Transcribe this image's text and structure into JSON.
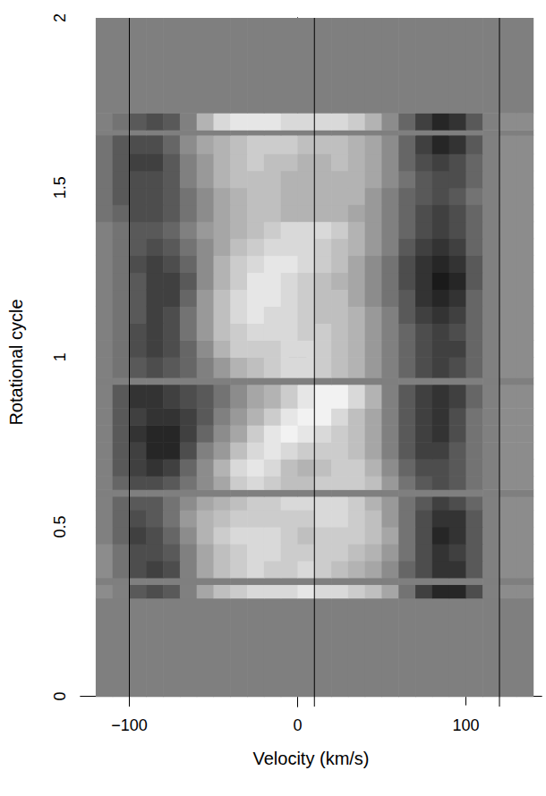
{
  "chart_data": {
    "type": "heatmap",
    "xlabel": "Velocity (km/s)",
    "ylabel": "Rotational cycle",
    "xlim": [
      -129,
      145
    ],
    "ylim": [
      -0.03,
      2
    ],
    "xticks": [
      {
        "value": -100,
        "label": "−100"
      },
      0,
      100
    ],
    "yticks": [
      0,
      0.5,
      1,
      1.5,
      2
    ],
    "zlim": [
      0,
      1
    ],
    "vlines": [
      -100,
      10,
      120
    ],
    "x_edges": [
      -120,
      -110,
      -100,
      -90,
      -80,
      -70,
      -60,
      -50,
      -40,
      -30,
      -20,
      -10,
      0,
      10,
      20,
      30,
      40,
      50,
      60,
      70,
      80,
      90,
      100,
      110,
      120,
      130,
      140
    ],
    "y_edges": [
      0,
      0.29,
      0.33,
      0.35,
      0.4,
      0.45,
      0.5,
      0.55,
      0.59,
      0.61,
      0.65,
      0.7,
      0.75,
      0.8,
      0.85,
      0.92,
      0.94,
      1.0,
      1.05,
      1.1,
      1.15,
      1.2,
      1.25,
      1.3,
      1.35,
      1.4,
      1.45,
      1.5,
      1.55,
      1.6,
      1.655,
      1.67,
      1.72,
      2
    ],
    "values": [
      [
        null,
        null,
        null,
        null,
        null,
        null,
        null,
        null,
        null,
        null,
        null,
        null,
        null,
        null,
        null,
        null,
        null,
        null,
        null,
        null,
        null,
        null,
        null,
        null,
        null,
        null
      ],
      [
        0.55,
        0.5,
        0.35,
        0.3,
        0.35,
        0.5,
        0.65,
        0.75,
        0.8,
        0.85,
        0.85,
        0.85,
        0.9,
        0.85,
        0.85,
        0.8,
        0.75,
        0.65,
        0.45,
        0.25,
        0.15,
        0.15,
        0.3,
        0.5,
        0.55,
        0.55
      ],
      [
        null,
        null,
        null,
        null,
        null,
        null,
        null,
        null,
        null,
        null,
        null,
        null,
        null,
        null,
        null,
        null,
        null,
        null,
        null,
        null,
        null,
        null,
        null,
        null,
        null,
        null
      ],
      [
        0.55,
        0.45,
        0.3,
        0.25,
        0.3,
        0.5,
        0.65,
        0.75,
        0.8,
        0.85,
        0.8,
        0.8,
        0.85,
        0.8,
        0.75,
        0.7,
        0.65,
        0.55,
        0.4,
        0.3,
        0.2,
        0.2,
        0.35,
        0.5,
        0.55,
        0.55
      ],
      [
        0.55,
        0.45,
        0.3,
        0.3,
        0.35,
        0.5,
        0.65,
        0.75,
        0.8,
        0.85,
        0.85,
        0.8,
        0.8,
        0.8,
        0.8,
        0.75,
        0.7,
        0.6,
        0.45,
        0.3,
        0.2,
        0.25,
        0.35,
        0.5,
        0.55,
        0.55
      ],
      [
        0.5,
        0.4,
        0.25,
        0.3,
        0.4,
        0.55,
        0.7,
        0.8,
        0.85,
        0.85,
        0.85,
        0.8,
        0.75,
        0.8,
        0.8,
        0.8,
        0.75,
        0.65,
        0.45,
        0.3,
        0.15,
        0.2,
        0.35,
        0.5,
        0.55,
        0.55
      ],
      [
        0.5,
        0.4,
        0.3,
        0.35,
        0.45,
        0.6,
        0.7,
        0.75,
        0.8,
        0.8,
        0.8,
        0.8,
        0.8,
        0.85,
        0.85,
        0.8,
        0.75,
        0.6,
        0.45,
        0.3,
        0.2,
        0.2,
        0.35,
        0.5,
        0.55,
        0.55
      ],
      [
        0.5,
        0.4,
        0.35,
        0.35,
        0.45,
        0.55,
        0.65,
        0.7,
        0.75,
        0.8,
        0.8,
        0.85,
        0.85,
        0.85,
        0.85,
        0.8,
        0.7,
        0.6,
        0.45,
        0.35,
        0.25,
        0.3,
        0.4,
        0.5,
        0.55,
        0.55
      ],
      [
        null,
        null,
        null,
        null,
        null,
        null,
        null,
        null,
        null,
        null,
        null,
        null,
        null,
        null,
        null,
        null,
        null,
        null,
        null,
        null,
        null,
        null,
        null,
        null,
        null,
        null
      ],
      [
        0.5,
        0.4,
        0.3,
        0.3,
        0.35,
        0.45,
        0.55,
        0.65,
        0.8,
        0.85,
        0.8,
        0.75,
        0.75,
        0.8,
        0.8,
        0.8,
        0.75,
        0.6,
        0.45,
        0.35,
        0.3,
        0.35,
        0.45,
        0.5,
        0.55,
        0.55
      ],
      [
        0.5,
        0.35,
        0.25,
        0.2,
        0.25,
        0.4,
        0.55,
        0.7,
        0.85,
        0.9,
        0.85,
        0.75,
        0.7,
        0.75,
        0.8,
        0.8,
        0.7,
        0.55,
        0.4,
        0.3,
        0.3,
        0.35,
        0.45,
        0.5,
        0.55,
        0.55
      ],
      [
        0.5,
        0.35,
        0.25,
        0.15,
        0.15,
        0.3,
        0.5,
        0.6,
        0.75,
        0.85,
        0.9,
        0.85,
        0.8,
        0.8,
        0.8,
        0.75,
        0.65,
        0.5,
        0.35,
        0.25,
        0.25,
        0.35,
        0.45,
        0.5,
        0.55,
        0.55
      ],
      [
        0.5,
        0.35,
        0.2,
        0.15,
        0.15,
        0.25,
        0.4,
        0.55,
        0.65,
        0.8,
        0.9,
        0.95,
        0.9,
        0.85,
        0.8,
        0.75,
        0.65,
        0.5,
        0.35,
        0.25,
        0.2,
        0.3,
        0.45,
        0.5,
        0.55,
        0.55
      ],
      [
        0.5,
        0.35,
        0.25,
        0.2,
        0.2,
        0.25,
        0.35,
        0.5,
        0.6,
        0.7,
        0.8,
        0.9,
        0.95,
        0.95,
        0.85,
        0.75,
        0.65,
        0.5,
        0.35,
        0.25,
        0.2,
        0.3,
        0.45,
        0.5,
        0.55,
        0.55
      ],
      [
        0.5,
        0.35,
        0.2,
        0.2,
        0.25,
        0.3,
        0.35,
        0.45,
        0.55,
        0.65,
        0.7,
        0.8,
        0.9,
        0.95,
        0.95,
        0.85,
        0.7,
        0.5,
        0.35,
        0.25,
        0.2,
        0.25,
        0.4,
        0.5,
        0.55,
        0.55
      ],
      [
        null,
        null,
        null,
        null,
        null,
        null,
        null,
        null,
        null,
        null,
        null,
        null,
        null,
        null,
        null,
        null,
        null,
        null,
        null,
        null,
        null,
        null,
        null,
        null,
        null,
        null
      ],
      [
        0.5,
        0.45,
        0.35,
        0.3,
        0.35,
        0.4,
        0.5,
        0.6,
        0.7,
        0.75,
        0.8,
        0.85,
        0.85,
        0.8,
        0.75,
        0.7,
        0.6,
        0.5,
        0.4,
        0.3,
        0.25,
        0.3,
        0.4,
        0.5,
        0.55,
        0.55
      ],
      [
        0.5,
        0.45,
        0.3,
        0.25,
        0.3,
        0.4,
        0.55,
        0.7,
        0.8,
        0.8,
        0.8,
        0.85,
        0.85,
        0.8,
        0.75,
        0.7,
        0.6,
        0.5,
        0.4,
        0.3,
        0.25,
        0.25,
        0.4,
        0.5,
        0.55,
        0.55
      ],
      [
        0.5,
        0.45,
        0.3,
        0.25,
        0.3,
        0.45,
        0.6,
        0.75,
        0.8,
        0.85,
        0.85,
        0.85,
        0.8,
        0.8,
        0.75,
        0.7,
        0.6,
        0.5,
        0.4,
        0.3,
        0.25,
        0.3,
        0.4,
        0.5,
        0.55,
        0.55
      ],
      [
        0.5,
        0.45,
        0.35,
        0.25,
        0.3,
        0.45,
        0.6,
        0.75,
        0.85,
        0.9,
        0.85,
        0.85,
        0.8,
        0.75,
        0.75,
        0.7,
        0.6,
        0.5,
        0.35,
        0.25,
        0.2,
        0.25,
        0.4,
        0.5,
        0.55,
        0.55
      ],
      [
        0.5,
        0.45,
        0.35,
        0.25,
        0.25,
        0.4,
        0.6,
        0.75,
        0.85,
        0.9,
        0.9,
        0.85,
        0.8,
        0.75,
        0.75,
        0.65,
        0.55,
        0.45,
        0.35,
        0.2,
        0.15,
        0.2,
        0.4,
        0.5,
        0.55,
        0.55
      ],
      [
        0.5,
        0.45,
        0.35,
        0.25,
        0.25,
        0.35,
        0.55,
        0.7,
        0.8,
        0.9,
        0.9,
        0.85,
        0.8,
        0.75,
        0.7,
        0.65,
        0.55,
        0.45,
        0.3,
        0.2,
        0.1,
        0.15,
        0.35,
        0.5,
        0.55,
        0.55
      ],
      [
        0.5,
        0.45,
        0.3,
        0.25,
        0.3,
        0.4,
        0.55,
        0.7,
        0.8,
        0.85,
        0.9,
        0.9,
        0.85,
        0.8,
        0.75,
        0.65,
        0.55,
        0.45,
        0.3,
        0.2,
        0.15,
        0.2,
        0.35,
        0.5,
        0.55,
        0.55
      ],
      [
        0.5,
        0.45,
        0.35,
        0.3,
        0.35,
        0.45,
        0.55,
        0.65,
        0.75,
        0.8,
        0.85,
        0.85,
        0.85,
        0.8,
        0.75,
        0.7,
        0.6,
        0.5,
        0.35,
        0.25,
        0.2,
        0.25,
        0.4,
        0.5,
        0.55,
        0.55
      ],
      [
        0.5,
        0.45,
        0.35,
        0.35,
        0.4,
        0.5,
        0.6,
        0.65,
        0.7,
        0.75,
        0.8,
        0.85,
        0.85,
        0.85,
        0.8,
        0.7,
        0.6,
        0.5,
        0.4,
        0.3,
        0.25,
        0.3,
        0.4,
        0.5,
        0.55,
        0.55
      ],
      [
        0.45,
        0.4,
        0.3,
        0.3,
        0.35,
        0.45,
        0.55,
        0.65,
        0.7,
        0.75,
        0.75,
        0.7,
        0.7,
        0.7,
        0.7,
        0.65,
        0.6,
        0.5,
        0.4,
        0.3,
        0.25,
        0.3,
        0.4,
        0.5,
        0.55,
        0.55
      ],
      [
        0.45,
        0.35,
        0.3,
        0.3,
        0.35,
        0.45,
        0.55,
        0.65,
        0.7,
        0.75,
        0.75,
        0.7,
        0.7,
        0.7,
        0.7,
        0.7,
        0.6,
        0.5,
        0.4,
        0.35,
        0.3,
        0.35,
        0.45,
        0.5,
        0.55,
        0.55
      ],
      [
        0.45,
        0.35,
        0.3,
        0.3,
        0.35,
        0.5,
        0.6,
        0.7,
        0.75,
        0.75,
        0.75,
        0.7,
        0.7,
        0.7,
        0.7,
        0.7,
        0.65,
        0.55,
        0.45,
        0.35,
        0.3,
        0.3,
        0.4,
        0.5,
        0.55,
        0.55
      ],
      [
        0.45,
        0.35,
        0.25,
        0.25,
        0.35,
        0.5,
        0.6,
        0.7,
        0.75,
        0.8,
        0.75,
        0.75,
        0.7,
        0.7,
        0.75,
        0.7,
        0.65,
        0.55,
        0.4,
        0.3,
        0.25,
        0.3,
        0.4,
        0.5,
        0.55,
        0.55
      ],
      [
        0.45,
        0.35,
        0.3,
        0.3,
        0.4,
        0.55,
        0.65,
        0.7,
        0.75,
        0.8,
        0.8,
        0.8,
        0.75,
        0.75,
        0.75,
        0.7,
        0.65,
        0.55,
        0.4,
        0.25,
        0.15,
        0.2,
        0.35,
        0.5,
        0.55,
        0.55
      ],
      [
        null,
        null,
        null,
        null,
        null,
        null,
        null,
        null,
        null,
        null,
        null,
        null,
        null,
        null,
        null,
        null,
        null,
        null,
        null,
        null,
        null,
        null,
        null,
        null,
        null,
        null
      ],
      [
        0.5,
        0.45,
        0.35,
        0.3,
        0.35,
        0.5,
        0.7,
        0.85,
        0.9,
        0.9,
        0.9,
        0.85,
        0.85,
        0.85,
        0.85,
        0.8,
        0.7,
        0.55,
        0.4,
        0.25,
        0.15,
        0.2,
        0.35,
        0.5,
        0.55,
        0.55
      ],
      [
        null,
        null,
        null,
        null,
        null,
        null,
        null,
        null,
        null,
        null,
        null,
        null,
        null,
        null,
        null,
        null,
        null,
        null,
        null,
        null,
        null,
        null,
        null,
        null,
        null,
        null
      ]
    ]
  }
}
